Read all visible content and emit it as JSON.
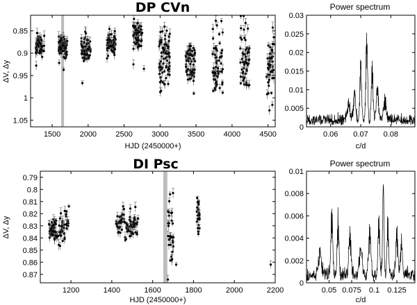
{
  "chart_data": [
    {
      "id": "lc1",
      "type": "scatter",
      "title": "DP CVn",
      "xlabel": "HJD (2450000+)",
      "ylabel": "ΔV, Δy",
      "xlim": [
        1200,
        4600
      ],
      "ylim": [
        1.065,
        0.815
      ],
      "y_inverted": true,
      "xticks": [
        1500,
        2000,
        2500,
        3000,
        3500,
        4000,
        4500
      ],
      "yticks": [
        0.85,
        0.9,
        0.95,
        1,
        1.05
      ],
      "ytick_labels": [
        "0.85",
        "0.9",
        "0.95",
        "1",
        "1.05"
      ],
      "highlight_band": [
        1625,
        1665
      ],
      "seasons": [
        {
          "center": 1330,
          "width": 120,
          "mean": 0.885,
          "spread": 0.012,
          "n": 60
        },
        {
          "center": 1650,
          "width": 120,
          "mean": 0.885,
          "spread": 0.012,
          "n": 70
        },
        {
          "center": 1970,
          "width": 130,
          "mean": 0.89,
          "spread": 0.015,
          "n": 55
        },
        {
          "center": 2320,
          "width": 120,
          "mean": 0.88,
          "spread": 0.016,
          "n": 60
        },
        {
          "center": 2690,
          "width": 130,
          "mean": 0.86,
          "spread": 0.016,
          "n": 60
        },
        {
          "center": 3060,
          "width": 150,
          "mean": 0.91,
          "spread": 0.035,
          "n": 80
        },
        {
          "center": 3420,
          "width": 130,
          "mean": 0.92,
          "spread": 0.025,
          "n": 60
        },
        {
          "center": 3800,
          "width": 140,
          "mean": 0.93,
          "spread": 0.045,
          "n": 60
        },
        {
          "center": 4180,
          "width": 130,
          "mean": 0.92,
          "spread": 0.05,
          "n": 55
        },
        {
          "center": 4530,
          "width": 110,
          "mean": 0.93,
          "spread": 0.04,
          "n": 45
        }
      ],
      "outliers": [
        [
          1660,
          0.937
        ],
        [
          1920,
          0.967
        ],
        [
          2775,
          0.935
        ],
        [
          2630,
          0.925
        ],
        [
          4520,
          1.028
        ]
      ]
    },
    {
      "id": "ps1",
      "type": "line",
      "title": "Power spectrum",
      "xlabel": "c/d",
      "ylabel": "",
      "xlim": [
        0.052,
        0.088
      ],
      "ylim": [
        0,
        0.03
      ],
      "xticks": [
        0.06,
        0.07,
        0.08
      ],
      "yticks": [
        0,
        0.005,
        0.01,
        0.015,
        0.02,
        0.025,
        0.03
      ],
      "ytick_labels": [
        "0",
        "0.005",
        "0.01",
        "0.015",
        "0.02",
        "0.025",
        "0.03"
      ],
      "baseline": 0.003,
      "peaks": [
        {
          "x": 0.072,
          "height": 0.0248,
          "width": 0.00028
        },
        {
          "x": 0.07,
          "height": 0.0172,
          "width": 0.00028
        },
        {
          "x": 0.0738,
          "height": 0.0162,
          "width": 0.00028
        },
        {
          "x": 0.068,
          "height": 0.008,
          "width": 0.0004
        },
        {
          "x": 0.0755,
          "height": 0.009,
          "width": 0.0004
        },
        {
          "x": 0.066,
          "height": 0.005,
          "width": 0.0005
        },
        {
          "x": 0.078,
          "height": 0.0055,
          "width": 0.0005
        }
      ]
    },
    {
      "id": "lc2",
      "type": "scatter",
      "title": "DI Psc",
      "xlabel": "HJD (2450000+)",
      "ylabel": "ΔV, Δy",
      "xlim": [
        1050,
        2200
      ],
      "ylim": [
        0.877,
        0.785
      ],
      "y_inverted": true,
      "xticks": [
        1200,
        1400,
        1600,
        1800,
        2000,
        2200
      ],
      "yticks": [
        0.79,
        0.8,
        0.81,
        0.82,
        0.83,
        0.84,
        0.85,
        0.86,
        0.87
      ],
      "ytick_labels": [
        "0.79",
        "0.8",
        "0.81",
        "0.82",
        "0.83",
        "0.84",
        "0.85",
        "0.86",
        "0.87"
      ],
      "highlight_band": [
        1652,
        1672
      ],
      "seasons": [
        {
          "center": 1130,
          "width": 80,
          "mean": 0.832,
          "spread": 0.006,
          "n": 70
        },
        {
          "center": 1180,
          "width": 15,
          "mean": 0.826,
          "spread": 0.005,
          "n": 10
        },
        {
          "center": 1475,
          "width": 110,
          "mean": 0.829,
          "spread": 0.006,
          "n": 80
        },
        {
          "center": 1688,
          "width": 30,
          "mean": 0.835,
          "spread": 0.013,
          "n": 30
        },
        {
          "center": 1823,
          "width": 15,
          "mean": 0.82,
          "spread": 0.008,
          "n": 22
        }
      ],
      "outliers": [
        [
          2178,
          0.862
        ],
        [
          1190,
          0.814
        ],
        [
          1715,
          0.862
        ],
        [
          1700,
          0.803
        ]
      ]
    },
    {
      "id": "ps2",
      "type": "line",
      "title": "Power spectrum",
      "xlabel": "c/d",
      "ylabel": "",
      "xlim": [
        0.025,
        0.145
      ],
      "ylim": [
        0,
        0.01
      ],
      "xticks": [
        0.05,
        0.075,
        0.1,
        0.125
      ],
      "yticks": [
        0,
        0.002,
        0.004,
        0.006,
        0.008,
        0.01
      ],
      "ytick_labels": [
        "0",
        "0.002",
        "0.004",
        "0.006",
        "0.008",
        "0.01"
      ],
      "baseline": 0.0012,
      "peaks": [
        {
          "x": 0.11,
          "height": 0.009,
          "width": 0.0008
        },
        {
          "x": 0.053,
          "height": 0.0062,
          "width": 0.001
        },
        {
          "x": 0.06,
          "height": 0.0055,
          "width": 0.001
        },
        {
          "x": 0.095,
          "height": 0.0045,
          "width": 0.0012
        },
        {
          "x": 0.073,
          "height": 0.0042,
          "width": 0.0012
        },
        {
          "x": 0.125,
          "height": 0.004,
          "width": 0.0012
        },
        {
          "x": 0.13,
          "height": 0.0032,
          "width": 0.0012
        },
        {
          "x": 0.105,
          "height": 0.0058,
          "width": 0.0009
        },
        {
          "x": 0.115,
          "height": 0.0052,
          "width": 0.0009
        },
        {
          "x": 0.085,
          "height": 0.0028,
          "width": 0.0014
        },
        {
          "x": 0.04,
          "height": 0.0026,
          "width": 0.0014
        }
      ]
    }
  ]
}
